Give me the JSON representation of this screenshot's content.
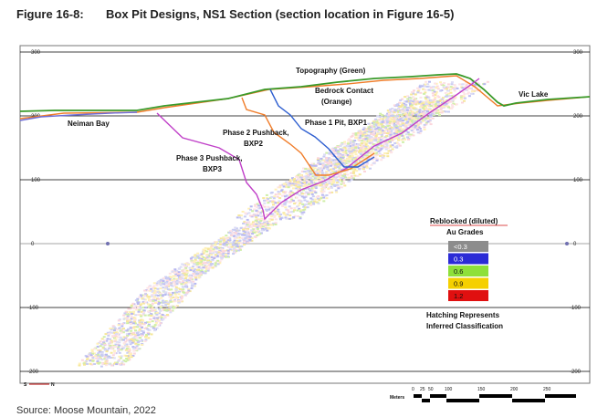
{
  "header": {
    "figure_number": "Figure 16-8:",
    "title": "Box Pit Designs, NS1 Section (section location in Figure 16-5)"
  },
  "axis": {
    "elevation_ticks": [
      "300",
      "200",
      "100",
      "0",
      "-100",
      "-200"
    ]
  },
  "labels": {
    "topography": "Topography (Green)",
    "bedrock_line1": "Bedrock Contact",
    "bedrock_line2": "(Orange)",
    "neiman_bay": "Neiman Bay",
    "vic_lake": "Vic Lake",
    "phase1": "Phase 1 Pit, BXP1",
    "phase2_line1": "Phase 2 Pushback,",
    "phase2_line2": "BXP2",
    "phase3_line1": "Phase 3 Pushback,",
    "phase3_line2": "BXP3"
  },
  "legend": {
    "title": "Reblocked (diluted)",
    "subtitle": "Au Grades",
    "items": [
      {
        "label": "<0.3",
        "color": "#8c8c8c"
      },
      {
        "label": "0.3",
        "color": "#2b2bd6"
      },
      {
        "label": "0.6",
        "color": "#8ee03a"
      },
      {
        "label": "0.9",
        "color": "#f5d000"
      },
      {
        "label": "1.2",
        "color": "#e01010"
      }
    ],
    "hatch_note_line1": "Hatching Represents",
    "hatch_note_line2": "Inferred Classification"
  },
  "colors": {
    "topography": "#3a9a2a",
    "bedrock": "#f07d2a",
    "phase1": "#2f5fd0",
    "phase2": "#f07d2a",
    "phase3": "#c040c8",
    "grid": "#000000"
  },
  "orientation": {
    "left": "S",
    "right": "N"
  },
  "scale": {
    "ticks": [
      "0",
      "25",
      "50",
      "100",
      "150",
      "200",
      "250"
    ],
    "unit": "Meters"
  },
  "source": "Source: Moose Mountain, 2022"
}
